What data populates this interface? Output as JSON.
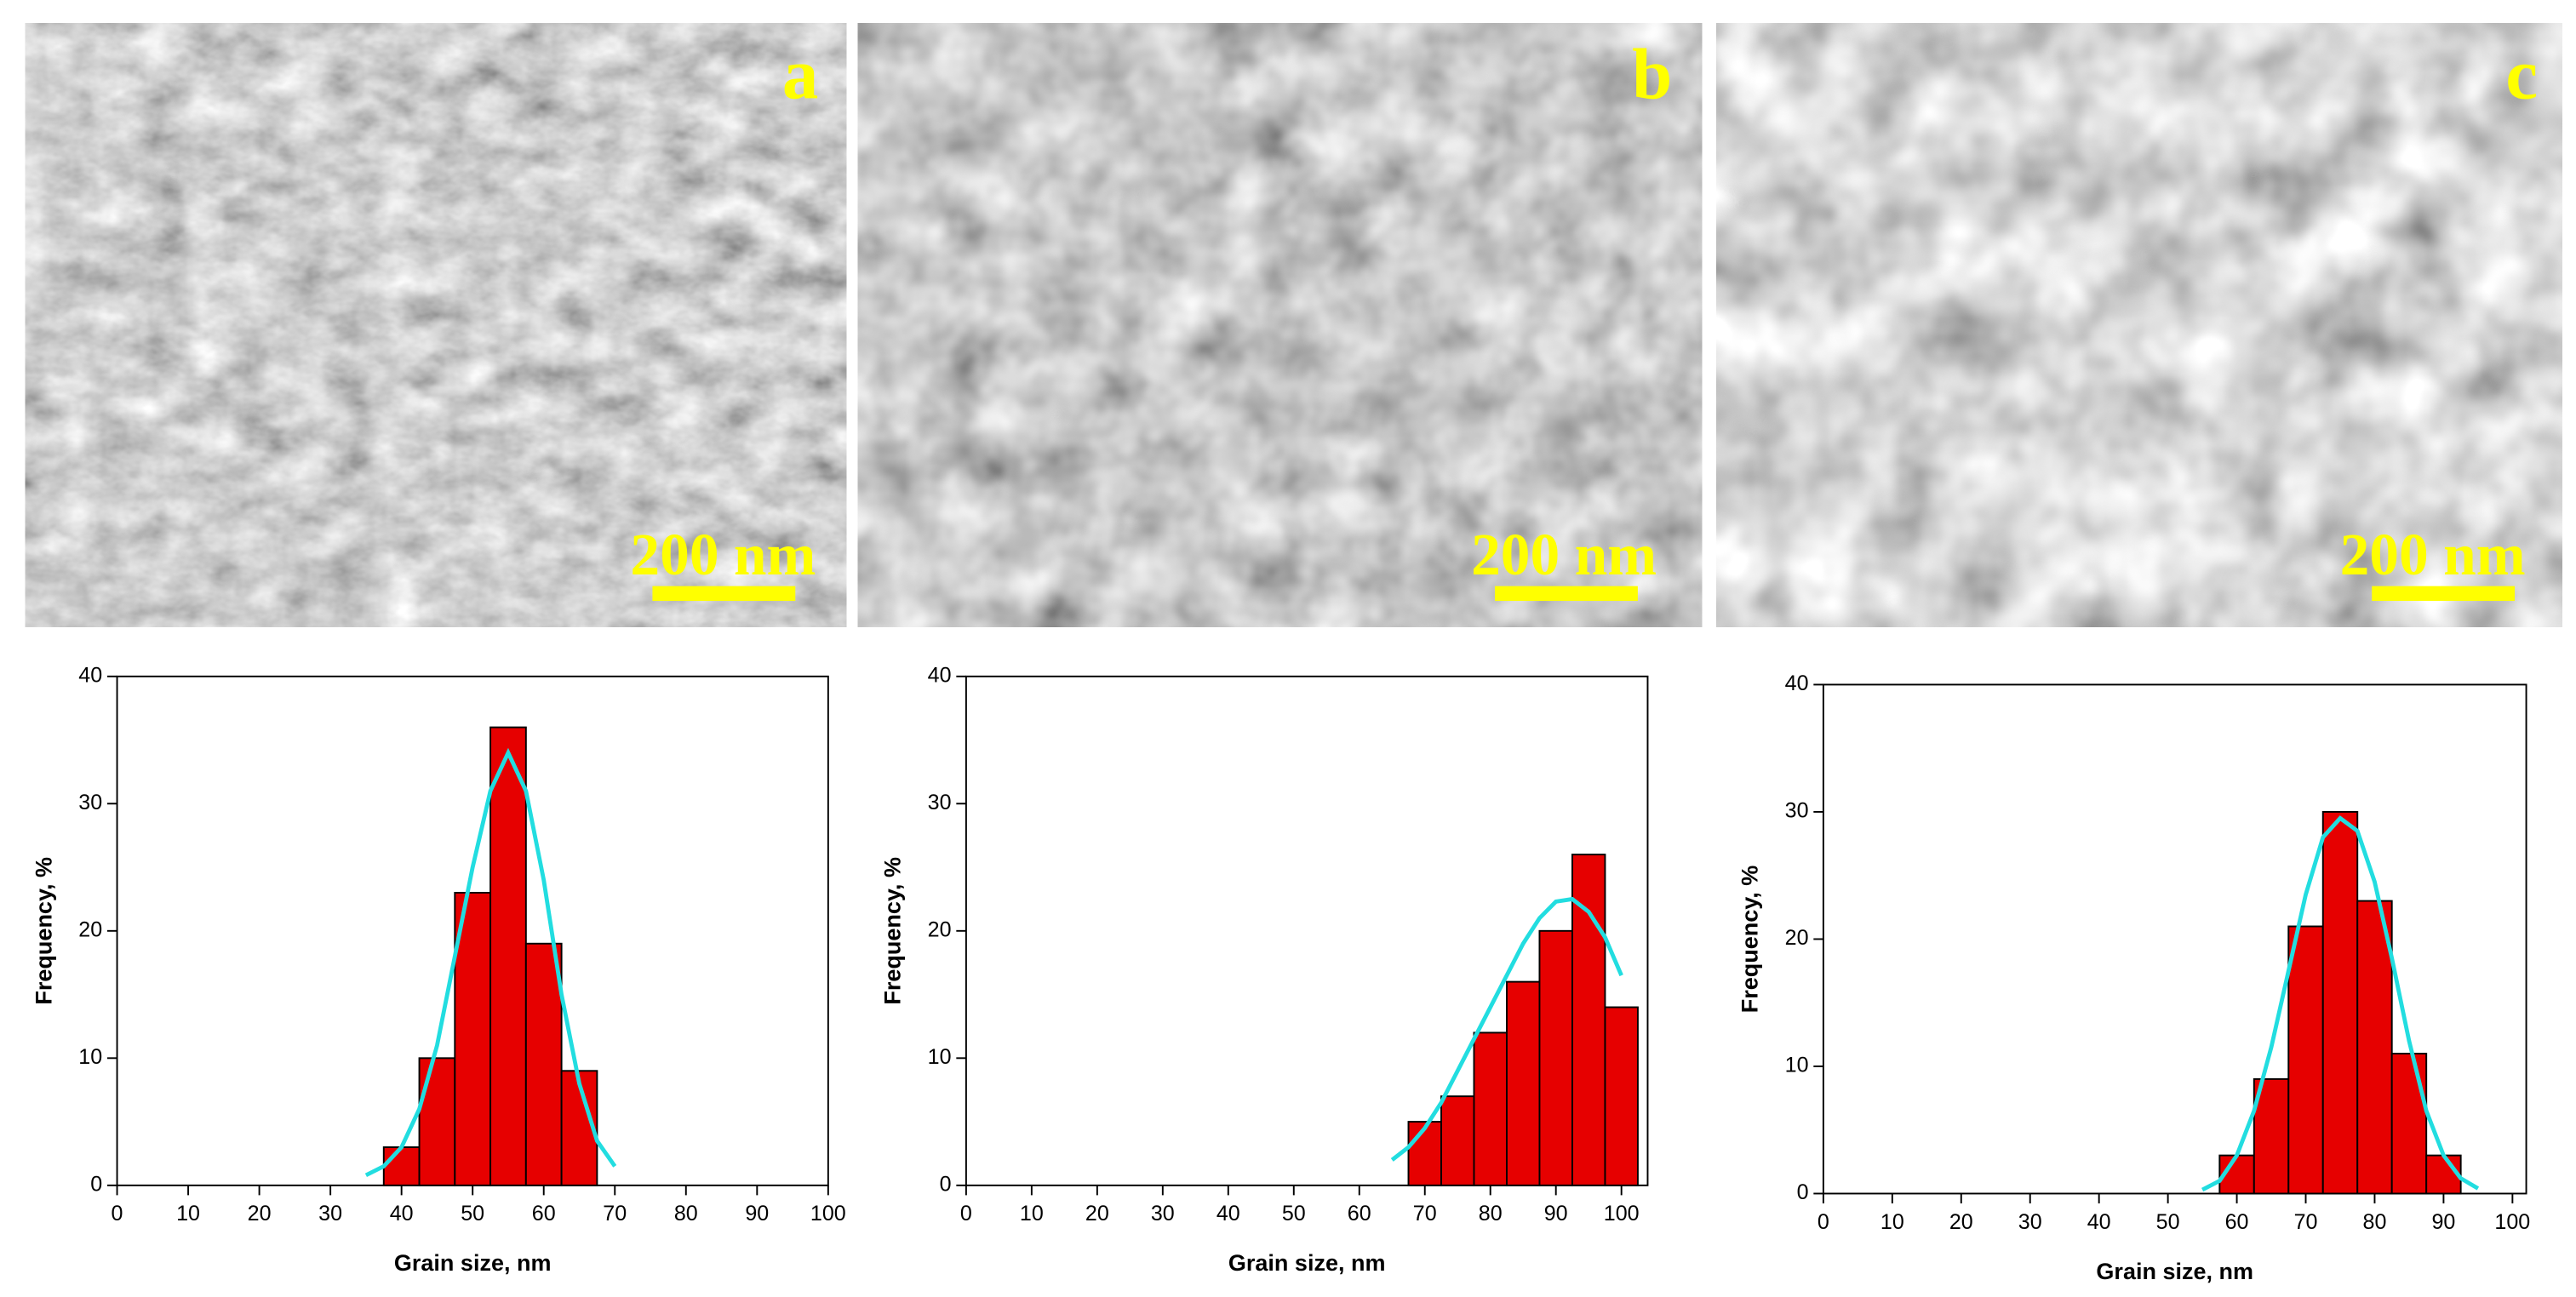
{
  "images": [
    {
      "label": "a",
      "scale_bar": "200 nm"
    },
    {
      "label": "b",
      "scale_bar": "200 nm"
    },
    {
      "label": "c",
      "scale_bar": "200 nm"
    }
  ],
  "chart_data": [
    {
      "type": "histogram",
      "xlabel": "Grain size, nm",
      "ylabel": "Frequency, %",
      "bins": [
        37.5,
        42.5,
        47.5,
        52.5,
        57.5,
        62.5,
        67.5
      ],
      "values": [
        3,
        10,
        23,
        36,
        19,
        9
      ],
      "color": "#e60000",
      "fit": {
        "x": [
          35,
          37.5,
          40,
          42.5,
          45,
          47.5,
          50,
          52.5,
          55,
          57.5,
          60,
          62.5,
          65,
          67.5,
          70
        ],
        "values": [
          0.8,
          1.5,
          3,
          6,
          11,
          18,
          25,
          31,
          34,
          31,
          24,
          15,
          8,
          3.5,
          1.5
        ],
        "color": "#22dde0"
      },
      "xlim": [
        0,
        100
      ],
      "xticks": [
        0,
        10,
        20,
        30,
        40,
        50,
        60,
        70,
        80,
        90,
        100
      ],
      "ylim": [
        0,
        40
      ],
      "yticks": [
        0,
        10,
        20,
        30,
        40
      ]
    },
    {
      "type": "histogram",
      "xlabel": "Grain size, nm",
      "ylabel": "Frequency, %",
      "bins": [
        67.5,
        72.5,
        77.5,
        82.5,
        87.5,
        92.5,
        97.5,
        102.5
      ],
      "values": [
        5,
        7,
        12,
        16,
        20,
        26,
        14
      ],
      "color": "#e60000",
      "fit": {
        "x": [
          65,
          67.5,
          70,
          72.5,
          75,
          77.5,
          80,
          82.5,
          85,
          87.5,
          90,
          92.5,
          95,
          97.5,
          100
        ],
        "values": [
          2,
          3,
          4.5,
          6.5,
          9,
          11.5,
          14,
          16.5,
          19,
          21,
          22.3,
          22.5,
          21.5,
          19.5,
          16.5
        ],
        "color": "#22dde0"
      },
      "xlim": [
        0,
        104
      ],
      "xticks": [
        0,
        10,
        20,
        30,
        40,
        50,
        60,
        70,
        80,
        90,
        100
      ],
      "ylim": [
        0,
        40
      ],
      "yticks": [
        0,
        10,
        20,
        30,
        40
      ]
    },
    {
      "type": "histogram",
      "xlabel": "Grain size, nm",
      "ylabel": "Frequency, %",
      "bins": [
        57.5,
        62.5,
        67.5,
        72.5,
        77.5,
        82.5,
        87.5,
        92.5
      ],
      "values": [
        3,
        9,
        21,
        30,
        23,
        11,
        3
      ],
      "color": "#e60000",
      "fit": {
        "x": [
          55,
          57.5,
          60,
          62.5,
          65,
          67.5,
          70,
          72.5,
          75,
          77.5,
          80,
          82.5,
          85,
          87.5,
          90,
          92.5,
          95
        ],
        "values": [
          0.3,
          1,
          3,
          6.5,
          11.5,
          17.5,
          23.5,
          28,
          29.5,
          28.5,
          24.5,
          18.5,
          12,
          6.5,
          3,
          1.2,
          0.4
        ],
        "color": "#22dde0"
      },
      "xlim": [
        0,
        102
      ],
      "xticks": [
        0,
        10,
        20,
        30,
        40,
        50,
        60,
        70,
        80,
        90,
        100
      ],
      "ylim": [
        0,
        40
      ],
      "yticks": [
        0,
        10,
        20,
        30,
        40
      ]
    }
  ]
}
